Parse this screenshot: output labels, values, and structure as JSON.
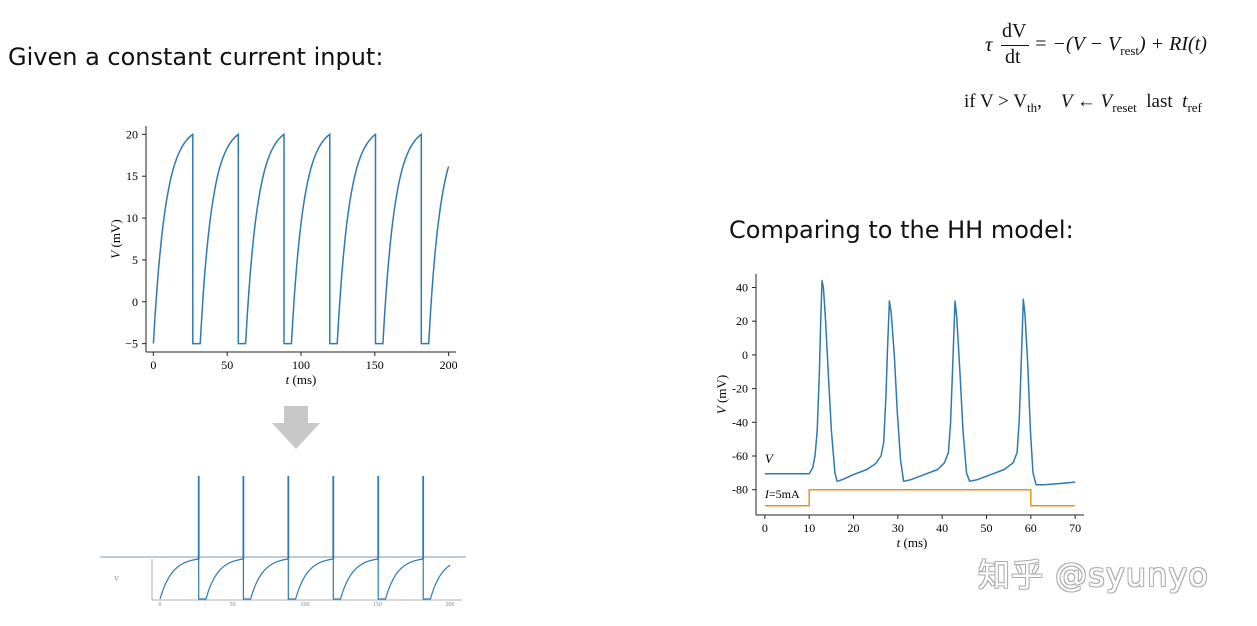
{
  "headings": {
    "left": "Given a constant current input:",
    "right": "Comparing to the HH model:"
  },
  "equation": {
    "tau": "τ",
    "numerator": "dV",
    "denominator": "dt",
    "rhs": "= −(V − V",
    "rhs_sub": "rest",
    "rhs_tail": ") + RI(t)",
    "cond_if": "if V > V",
    "cond_sub": "th",
    "cond_assign": "V ← V",
    "cond_assign_sub": "reset",
    "cond_last": "last",
    "cond_t": "t",
    "cond_t_sub": "ref"
  },
  "arrow_icon": "down-arrow-icon",
  "chart_data": [
    {
      "id": "lif",
      "type": "line",
      "title": "",
      "xlabel_var": "t",
      "xlabel_unit": " (ms)",
      "ylabel_var": "V",
      "ylabel_unit": " (mV)",
      "xlim": [
        -5,
        205
      ],
      "ylim": [
        -6,
        21
      ],
      "xticks": [
        0,
        50,
        100,
        150,
        200
      ],
      "yticks": [
        -5,
        0,
        5,
        10,
        15,
        20
      ],
      "threshold": 20,
      "reset": -5,
      "refractory_ms": 5,
      "spike_times": [
        26.7,
        57.5,
        88.5,
        119.5,
        150.5,
        181.5
      ],
      "end_value": 14.8,
      "x_end": 200,
      "color": "#2e7ab0"
    },
    {
      "id": "hh",
      "type": "line",
      "title": "",
      "xlabel_var": "t",
      "xlabel_unit": " (ms)",
      "ylabel_var": "V",
      "ylabel_unit": " (mV)",
      "xlim": [
        -2,
        72
      ],
      "ylim": [
        -95,
        48
      ],
      "xticks": [
        0,
        10,
        20,
        30,
        40,
        50,
        60,
        70
      ],
      "yticks": [
        40,
        20,
        0,
        -20,
        -40,
        -60,
        -80
      ],
      "series": [
        {
          "name": "V",
          "color": "#2e7ab0",
          "points": [
            [
              0,
              -70.5
            ],
            [
              10,
              -70.5
            ],
            [
              10.8,
              -67
            ],
            [
              11.3,
              -60
            ],
            [
              11.8,
              -45
            ],
            [
              12.3,
              -10
            ],
            [
              12.6,
              20
            ],
            [
              12.9,
              44
            ],
            [
              13.2,
              40
            ],
            [
              13.7,
              20
            ],
            [
              14.3,
              -10
            ],
            [
              15,
              -45
            ],
            [
              15.8,
              -70
            ],
            [
              16.3,
              -75
            ],
            [
              17.5,
              -74
            ],
            [
              20,
              -71
            ],
            [
              23,
              -68
            ],
            [
              25,
              -64.5
            ],
            [
              26.2,
              -60
            ],
            [
              26.8,
              -52
            ],
            [
              27.3,
              -25
            ],
            [
              27.7,
              5
            ],
            [
              28.1,
              32
            ],
            [
              28.5,
              25
            ],
            [
              29.2,
              0
            ],
            [
              29.9,
              -35
            ],
            [
              30.6,
              -62
            ],
            [
              31.3,
              -75
            ],
            [
              33,
              -74
            ],
            [
              36,
              -71
            ],
            [
              39,
              -68
            ],
            [
              40.5,
              -64
            ],
            [
              41.4,
              -58
            ],
            [
              41.9,
              -40
            ],
            [
              42.4,
              -5
            ],
            [
              42.9,
              32
            ],
            [
              43.3,
              22
            ],
            [
              44,
              -10
            ],
            [
              44.7,
              -45
            ],
            [
              45.5,
              -70
            ],
            [
              46.2,
              -75
            ],
            [
              48,
              -74
            ],
            [
              51,
              -71
            ],
            [
              54,
              -68
            ],
            [
              56,
              -64
            ],
            [
              56.9,
              -58
            ],
            [
              57.4,
              -38
            ],
            [
              57.9,
              0
            ],
            [
              58.3,
              33
            ],
            [
              58.7,
              24
            ],
            [
              59.3,
              -5
            ],
            [
              59.9,
              -45
            ],
            [
              60.5,
              -70
            ],
            [
              61.2,
              -77
            ],
            [
              63,
              -77
            ],
            [
              66,
              -76.5
            ],
            [
              70,
              -75.5
            ]
          ]
        },
        {
          "name": "I=5mA",
          "color": "#e69520",
          "points": [
            [
              0,
              -89.5
            ],
            [
              10,
              -89.5
            ],
            [
              10,
              -80
            ],
            [
              60,
              -80
            ],
            [
              60,
              -89.5
            ],
            [
              70,
              -89.5
            ]
          ]
        }
      ]
    },
    {
      "id": "lif-thumb",
      "type": "line",
      "title": "",
      "spike_times": [
        26.7,
        57.5,
        88.5,
        119.5,
        150.5,
        181.5
      ],
      "xticks": [
        "0",
        "50",
        "100",
        "150",
        "200"
      ],
      "color": "#2e7ab0"
    }
  ],
  "watermark": "知乎 @syunyo"
}
